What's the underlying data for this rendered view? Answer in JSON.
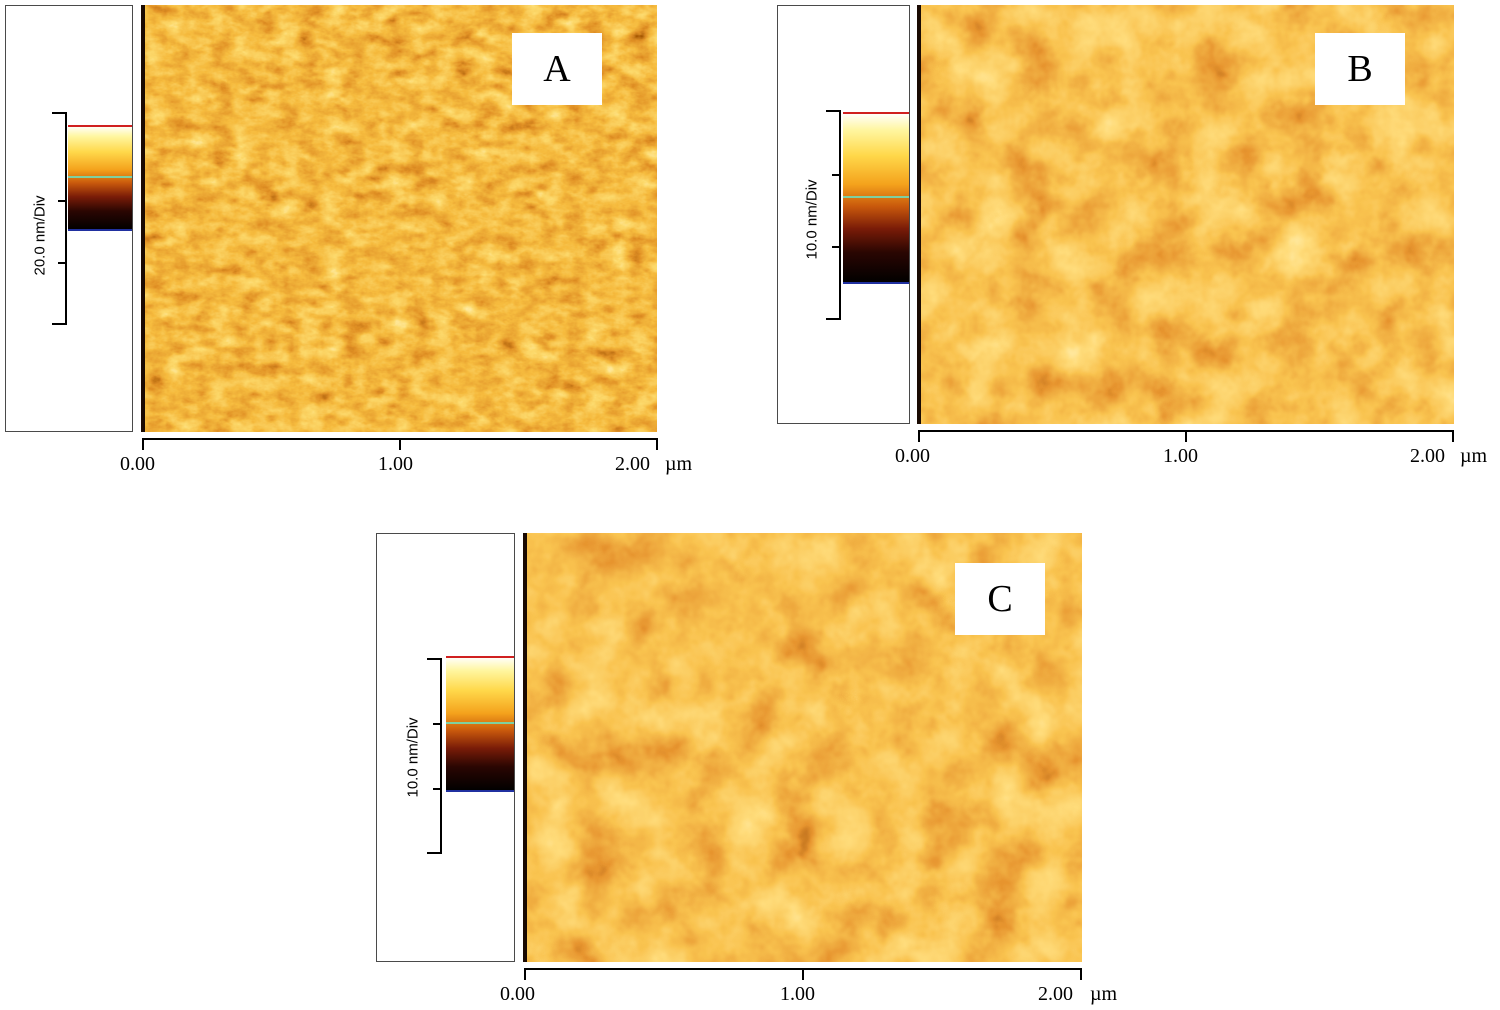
{
  "panels": [
    {
      "id": "A",
      "label": "A",
      "scale_label": "20.0 nm/Div",
      "x_ticks": [
        "0.00",
        "1.00",
        "2.00"
      ],
      "x_unit": "µm"
    },
    {
      "id": "B",
      "label": "B",
      "scale_label": "10.0 nm/Div",
      "x_ticks": [
        "0.00",
        "1.00",
        "2.00"
      ],
      "x_unit": "µm"
    },
    {
      "id": "C",
      "label": "C",
      "scale_label": "10.0 nm/Div",
      "x_ticks": [
        "0.00",
        "1.00",
        "2.00"
      ],
      "x_unit": "µm"
    }
  ],
  "colormap": [
    "#000000",
    "#2a0602",
    "#7a1c08",
    "#c8580c",
    "#f4a21c",
    "#ffd84a",
    "#fff6a0",
    "#ffffff"
  ]
}
